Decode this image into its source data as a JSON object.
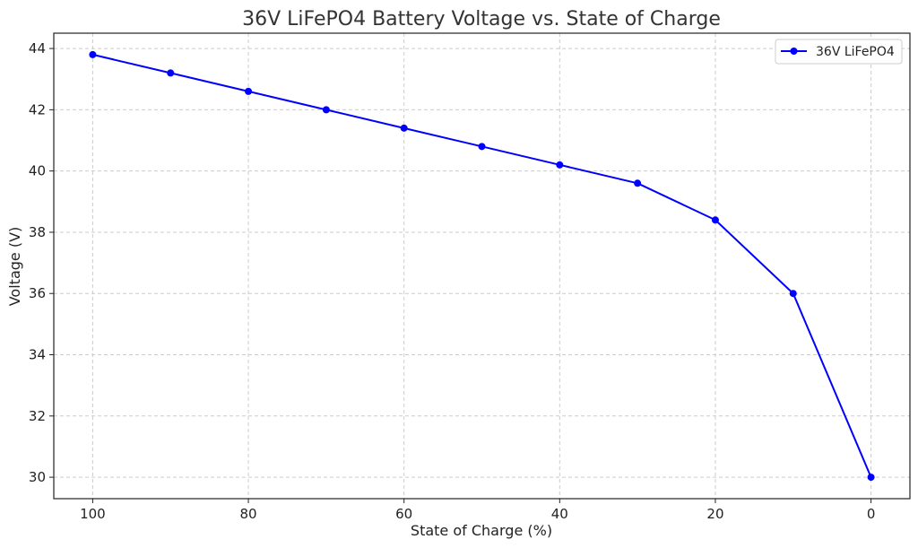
{
  "chart_data": {
    "type": "line",
    "title": "36V LiFePO4 Battery Voltage vs. State of Charge",
    "xlabel": "State of Charge (%)",
    "ylabel": "Voltage (V)",
    "x_inverted": true,
    "xlim": [
      105,
      -5
    ],
    "ylim": [
      29.3,
      44.5
    ],
    "xticks": [
      100,
      80,
      60,
      40,
      20,
      0
    ],
    "yticks": [
      30,
      32,
      34,
      36,
      38,
      40,
      42,
      44
    ],
    "grid": true,
    "legend_position": "top-right",
    "series": [
      {
        "name": "36V LiFePO4",
        "color": "#0000ff",
        "marker": "circle",
        "x": [
          100,
          90,
          80,
          70,
          60,
          50,
          40,
          30,
          20,
          10,
          0
        ],
        "y": [
          43.8,
          43.2,
          42.6,
          42.0,
          41.4,
          40.8,
          40.2,
          39.6,
          38.4,
          36.0,
          30.0
        ]
      }
    ]
  }
}
